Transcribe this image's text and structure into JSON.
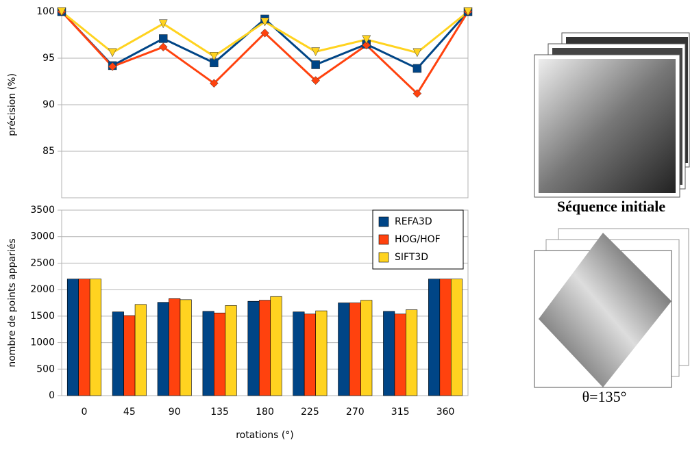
{
  "chart_data": [
    {
      "type": "line",
      "ylabel": "précision (%)",
      "ylim": [
        80,
        100
      ],
      "yticks": [
        85,
        90,
        95,
        100
      ],
      "grid": true,
      "series": [
        {
          "name": "REFA3D",
          "color": "#004586",
          "marker": "square",
          "values": [
            100,
            94.2,
            97.1,
            94.5,
            99.2,
            94.3,
            96.5,
            93.9,
            100
          ]
        },
        {
          "name": "HOG/HOF",
          "color": "#ff420e",
          "marker": "diamond",
          "values": [
            100,
            94.1,
            96.2,
            92.3,
            97.7,
            92.6,
            96.4,
            91.2,
            100
          ]
        },
        {
          "name": "SIFT3D",
          "color": "#ffd320",
          "marker": "triangle-down",
          "values": [
            100,
            95.6,
            98.7,
            95.2,
            98.9,
            95.7,
            97.0,
            95.6,
            100
          ]
        }
      ]
    },
    {
      "type": "bar",
      "xlabel": "rotations (°)",
      "ylabel": "nombre de points appariés",
      "categories": [
        "0",
        "45",
        "90",
        "135",
        "180",
        "225",
        "270",
        "315",
        "360"
      ],
      "ylim": [
        0,
        3500
      ],
      "yticks": [
        0,
        500,
        1000,
        1500,
        2000,
        2500,
        3000,
        3500
      ],
      "grid": true,
      "legend": "top-right",
      "series": [
        {
          "name": "REFA3D",
          "color": "#004586",
          "values": [
            2200,
            1580,
            1760,
            1590,
            1780,
            1580,
            1750,
            1590,
            2200
          ]
        },
        {
          "name": "HOG/HOF",
          "color": "#ff420e",
          "values": [
            2200,
            1510,
            1830,
            1560,
            1800,
            1540,
            1750,
            1540,
            2200
          ]
        },
        {
          "name": "SIFT3D",
          "color": "#ffd320",
          "values": [
            2200,
            1720,
            1810,
            1700,
            1870,
            1600,
            1800,
            1620,
            2200
          ]
        }
      ]
    }
  ],
  "images": [
    {
      "caption": "Séquence initiale"
    },
    {
      "caption": "θ=135°"
    }
  ]
}
